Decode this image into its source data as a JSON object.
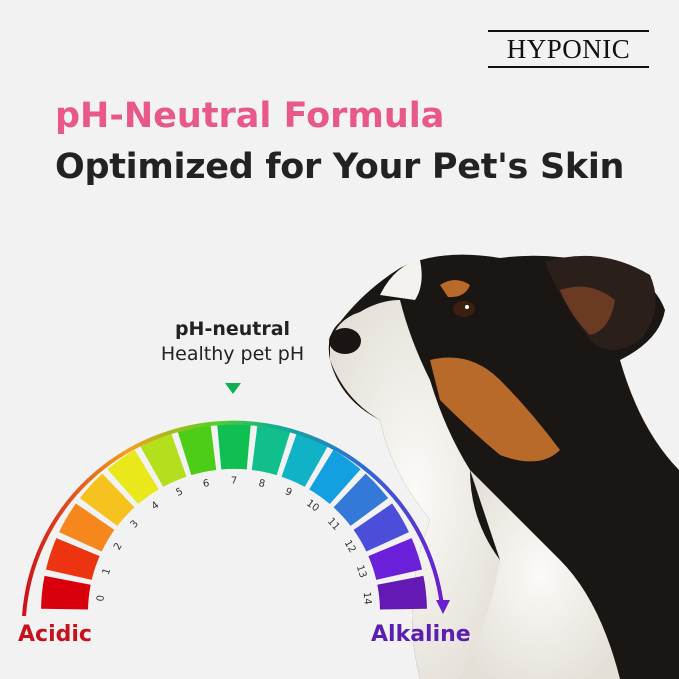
{
  "brand": {
    "logo_text": "HYPONIC"
  },
  "headline": {
    "line1": "pH-Neutral Formula",
    "line2": "Optimized for Your Pet's Skin"
  },
  "scale": {
    "marker_title": "pH-neutral",
    "marker_subtitle": "Healthy pet pH",
    "marker_value": 7,
    "left_label": "Acidic",
    "right_label": "Alkaline",
    "ticks": [
      "0",
      "1",
      "2",
      "3",
      "4",
      "5",
      "6",
      "7",
      "8",
      "9",
      "10",
      "11",
      "12",
      "13",
      "14"
    ],
    "colors": [
      "#d8000c",
      "#ec3410",
      "#f5871c",
      "#f6c21e",
      "#e9e81a",
      "#b4df1c",
      "#4ccd18",
      "#10bf52",
      "#10bf8c",
      "#10b3c6",
      "#12a0e0",
      "#3478d8",
      "#4a4ed8",
      "#6a20d8",
      "#6418b4"
    ]
  },
  "colors": {
    "pink": "#e8588a",
    "acidic": "#c8101e",
    "alkaline": "#5a1eb0",
    "marker": "#10b050"
  }
}
